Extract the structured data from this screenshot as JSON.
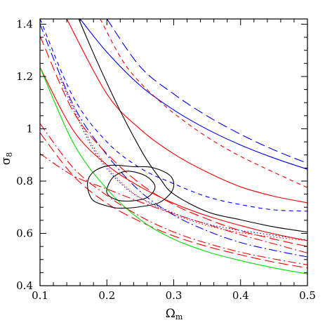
{
  "chart_data": {
    "type": "line",
    "title": "",
    "xlabel": "Ω",
    "xlabel_sub": "m",
    "ylabel": "σ",
    "ylabel_sub": "8",
    "xlim": [
      0.1,
      0.5
    ],
    "ylim": [
      0.4,
      1.42
    ],
    "grid": false,
    "legend": "none",
    "x_ticks": [
      {
        "value": 0.1,
        "label": "0.1"
      },
      {
        "value": 0.2,
        "label": "0.2"
      },
      {
        "value": 0.3,
        "label": "0.3"
      },
      {
        "value": 0.4,
        "label": "0.4"
      },
      {
        "value": 0.5,
        "label": "0.5"
      }
    ],
    "y_ticks": [
      {
        "value": 0.4,
        "label": "0.4"
      },
      {
        "value": 0.6,
        "label": "0.6"
      },
      {
        "value": 0.8,
        "label": "0.8"
      },
      {
        "value": 1.0,
        "label": "1"
      },
      {
        "value": 1.2,
        "label": "1.2"
      },
      {
        "value": 1.4,
        "label": "1.4"
      }
    ],
    "series": [
      {
        "color": "#0000ff",
        "dash": "solid",
        "values": [
          [
            0.16,
            1.42
          ],
          [
            0.2,
            1.293
          ],
          [
            0.25,
            1.165
          ],
          [
            0.3,
            1.072
          ],
          [
            0.35,
            0.998
          ],
          [
            0.4,
            0.938
          ],
          [
            0.45,
            0.888
          ],
          [
            0.5,
            0.845
          ]
        ]
      },
      {
        "color": "#0000ff",
        "dash": "long",
        "values": [
          [
            0.2,
            1.42
          ],
          [
            0.25,
            1.237
          ],
          [
            0.3,
            1.133
          ],
          [
            0.35,
            1.049
          ],
          [
            0.4,
            0.979
          ],
          [
            0.45,
            0.919
          ],
          [
            0.5,
            0.868
          ]
        ]
      },
      {
        "color": "#0000ff",
        "dash": "short",
        "values": [
          [
            0.1,
            1.42
          ],
          [
            0.15,
            1.12
          ],
          [
            0.2,
            0.95
          ],
          [
            0.25,
            0.85
          ],
          [
            0.3,
            0.79
          ],
          [
            0.35,
            0.74
          ],
          [
            0.4,
            0.71
          ],
          [
            0.45,
            0.69
          ],
          [
            0.5,
            0.685
          ]
        ]
      },
      {
        "color": "#0000ff",
        "dash": "dashdot",
        "values": [
          [
            0.1,
            1.4
          ],
          [
            0.15,
            1.09
          ],
          [
            0.2,
            0.9
          ],
          [
            0.25,
            0.76
          ],
          [
            0.3,
            0.67
          ],
          [
            0.35,
            0.61
          ],
          [
            0.4,
            0.565
          ],
          [
            0.45,
            0.535
          ],
          [
            0.5,
            0.51
          ]
        ]
      },
      {
        "color": "#0000ff",
        "dash": "dotted",
        "values": [
          [
            0.13,
            1.19
          ],
          [
            0.18,
            0.92
          ],
          [
            0.23,
            0.77
          ],
          [
            0.28,
            0.7
          ],
          [
            0.33,
            0.65
          ],
          [
            0.38,
            0.62
          ],
          [
            0.43,
            0.6
          ],
          [
            0.5,
            0.575
          ]
        ]
      },
      {
        "color": "#ff0000",
        "dash": "solid",
        "values": [
          [
            0.14,
            1.42
          ],
          [
            0.2,
            1.133
          ],
          [
            0.25,
            0.998
          ],
          [
            0.3,
            0.904
          ],
          [
            0.35,
            0.834
          ],
          [
            0.4,
            0.778
          ],
          [
            0.45,
            0.742
          ],
          [
            0.5,
            0.717
          ]
        ]
      },
      {
        "color": "#ff0000",
        "dash": "solid",
        "values": [
          [
            0.1,
            1.235
          ],
          [
            0.15,
            0.993
          ],
          [
            0.2,
            0.862
          ],
          [
            0.25,
            0.778
          ],
          [
            0.3,
            0.715
          ],
          [
            0.35,
            0.667
          ],
          [
            0.4,
            0.63
          ],
          [
            0.45,
            0.598
          ],
          [
            0.5,
            0.572
          ]
        ]
      },
      {
        "color": "#ff0000",
        "dash": "short",
        "values": [
          [
            0.19,
            1.42
          ],
          [
            0.23,
            1.236
          ],
          [
            0.28,
            1.103
          ],
          [
            0.33,
            1.003
          ],
          [
            0.38,
            0.922
          ],
          [
            0.43,
            0.857
          ],
          [
            0.5,
            0.775
          ]
        ]
      },
      {
        "color": "#ff0000",
        "dash": "long",
        "values": [
          [
            0.1,
            1.355
          ],
          [
            0.15,
            1.065
          ],
          [
            0.2,
            0.905
          ],
          [
            0.25,
            0.79
          ],
          [
            0.3,
            0.71
          ],
          [
            0.35,
            0.655
          ],
          [
            0.4,
            0.61
          ],
          [
            0.45,
            0.578
          ],
          [
            0.5,
            0.55
          ]
        ]
      },
      {
        "color": "#ff0000",
        "dash": "dotted",
        "values": [
          [
            0.13,
            1.2
          ],
          [
            0.18,
            0.93
          ],
          [
            0.23,
            0.775
          ],
          [
            0.28,
            0.695
          ],
          [
            0.33,
            0.645
          ],
          [
            0.38,
            0.612
          ],
          [
            0.43,
            0.592
          ],
          [
            0.5,
            0.572
          ]
        ]
      },
      {
        "color": "#ff0000",
        "dash": "dashdot",
        "values": [
          [
            0.1,
            0.905
          ],
          [
            0.15,
            0.82
          ],
          [
            0.2,
            0.77
          ],
          [
            0.25,
            0.72
          ],
          [
            0.3,
            0.675
          ],
          [
            0.35,
            0.635
          ],
          [
            0.4,
            0.595
          ],
          [
            0.45,
            0.56
          ],
          [
            0.5,
            0.525
          ]
        ]
      },
      {
        "color": "#ff0000",
        "dash": "dashdot",
        "values": [
          [
            0.1,
            1.02
          ],
          [
            0.15,
            0.85
          ],
          [
            0.2,
            0.745
          ],
          [
            0.25,
            0.665
          ],
          [
            0.3,
            0.605
          ],
          [
            0.35,
            0.562
          ],
          [
            0.4,
            0.528
          ],
          [
            0.45,
            0.502
          ],
          [
            0.5,
            0.48
          ]
        ]
      },
      {
        "color": "#ff0000",
        "dash": "long",
        "values": [
          [
            0.1,
            0.985
          ],
          [
            0.15,
            0.82
          ],
          [
            0.2,
            0.715
          ],
          [
            0.25,
            0.645
          ],
          [
            0.3,
            0.59
          ],
          [
            0.35,
            0.55
          ],
          [
            0.4,
            0.518
          ],
          [
            0.45,
            0.49
          ],
          [
            0.5,
            0.468
          ]
        ]
      },
      {
        "color": "#00dd00",
        "dash": "solid",
        "values": [
          [
            0.1,
            1.235
          ],
          [
            0.15,
            0.945
          ],
          [
            0.2,
            0.77
          ],
          [
            0.25,
            0.652
          ],
          [
            0.3,
            0.578
          ],
          [
            0.35,
            0.53
          ],
          [
            0.4,
            0.496
          ],
          [
            0.45,
            0.468
          ],
          [
            0.5,
            0.445
          ]
        ]
      },
      {
        "color": "#000000",
        "dash": "solid",
        "values": [
          [
            0.158,
            1.42
          ],
          [
            0.18,
            1.288
          ],
          [
            0.2,
            1.175
          ],
          [
            0.22,
            1.068
          ],
          [
            0.24,
            0.97
          ],
          [
            0.26,
            0.88
          ],
          [
            0.28,
            0.808
          ],
          [
            0.3,
            0.75
          ],
          [
            0.35,
            0.683
          ],
          [
            0.4,
            0.652
          ],
          [
            0.45,
            0.625
          ],
          [
            0.5,
            0.605
          ]
        ]
      },
      {
        "color": "#000000",
        "dash": "solid",
        "closed": true,
        "values": [
          [
            0.24,
            0.855
          ],
          [
            0.268,
            0.852
          ],
          [
            0.295,
            0.82
          ],
          [
            0.299,
            0.77
          ],
          [
            0.28,
            0.72
          ],
          [
            0.25,
            0.702
          ],
          [
            0.22,
            0.696
          ],
          [
            0.2,
            0.705
          ],
          [
            0.178,
            0.73
          ],
          [
            0.171,
            0.79
          ],
          [
            0.18,
            0.835
          ],
          [
            0.205,
            0.86
          ]
        ]
      },
      {
        "color": "#000000",
        "dash": "solid",
        "closed": true,
        "values": [
          [
            0.232,
            0.838
          ],
          [
            0.258,
            0.82
          ],
          [
            0.272,
            0.78
          ],
          [
            0.262,
            0.74
          ],
          [
            0.24,
            0.725
          ],
          [
            0.215,
            0.728
          ],
          [
            0.2,
            0.755
          ],
          [
            0.205,
            0.8
          ],
          [
            0.215,
            0.825
          ]
        ]
      }
    ]
  }
}
